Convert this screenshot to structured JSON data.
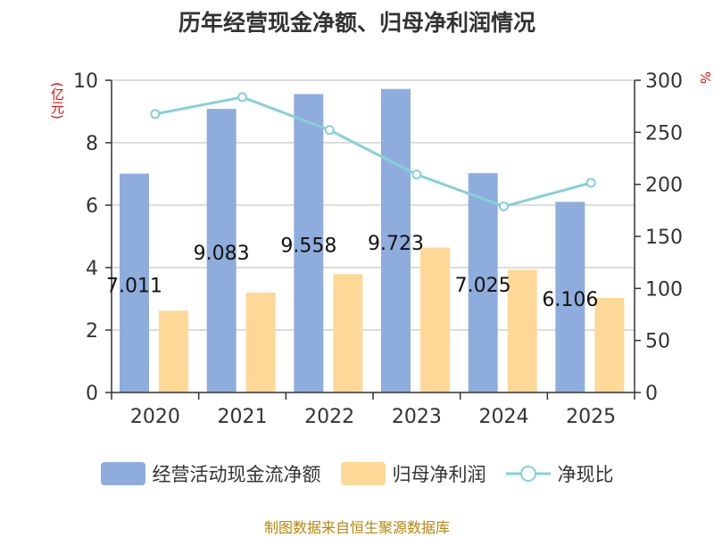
{
  "colors": {
    "operating_cash": "#8eaddc",
    "net_profit": "#fed897",
    "ratio": "#86d0d6",
    "unit": "#e01010",
    "source": "#b8860b",
    "grid": "#d0d0d0",
    "axis": "#333333"
  },
  "chart_data": {
    "type": "bar",
    "title": "历年经营现金净额、归母净利润情况",
    "categories": [
      "2020",
      "2021",
      "2022",
      "2023",
      "2024",
      "2025"
    ],
    "series": [
      {
        "name": "经营活动现金流净额",
        "axis": "left",
        "type": "bar",
        "values": [
          7.011,
          9.083,
          9.558,
          9.723,
          7.025,
          6.106
        ],
        "labels": [
          "7.011",
          "9.083",
          "9.558",
          "9.723",
          "7.025",
          "6.106"
        ]
      },
      {
        "name": "归母净利润",
        "axis": "left",
        "type": "bar",
        "values": [
          2.62,
          3.2,
          3.79,
          4.64,
          3.93,
          3.03
        ]
      },
      {
        "name": "净现比",
        "axis": "right",
        "type": "line",
        "values": [
          267.6,
          283.8,
          252.2,
          209.5,
          178.8,
          201.5
        ]
      }
    ],
    "y_left": {
      "label": "(亿元)",
      "min": 0,
      "max": 10,
      "ticks": [
        0,
        2,
        4,
        6,
        8,
        10
      ]
    },
    "y_right": {
      "label": "%",
      "min": 0,
      "max": 300,
      "ticks": [
        0,
        50,
        100,
        150,
        200,
        250,
        300
      ]
    },
    "grid": true,
    "legend_position": "bottom"
  },
  "legend": [
    {
      "label": "经营活动现金流净额",
      "kind": "bar"
    },
    {
      "label": "归母净利润",
      "kind": "bar"
    },
    {
      "label": "净现比",
      "kind": "line"
    }
  ],
  "source": "制图数据来自恒生聚源数据库"
}
